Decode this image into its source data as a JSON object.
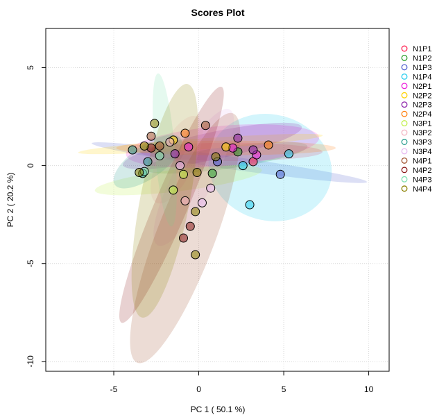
{
  "chart_data": {
    "type": "scatter",
    "title": "Scores Plot",
    "xlabel": "PC 1 ( 50.1 %)",
    "ylabel": "PC 2 ( 20.2 %)",
    "xlim": [
      -9,
      11.2
    ],
    "ylim": [
      -10.5,
      7
    ],
    "xticks": [
      -5,
      0,
      5,
      10
    ],
    "yticks": [
      -10,
      -5,
      0,
      5
    ],
    "grid": true,
    "legend_position": "right",
    "series": [
      {
        "name": "N1P1",
        "color": "#FF1F4F",
        "points": [
          [
            3.2,
            0.2
          ]
        ],
        "ellipse": {
          "cx": 1.9,
          "cy": 0.7,
          "rx": 5.0,
          "ry": 0.5,
          "angle": 0
        }
      },
      {
        "name": "N1P2",
        "color": "#2CA02C",
        "points": [
          [
            2.3,
            0.7
          ],
          [
            0.8,
            -0.4
          ]
        ],
        "ellipse": {
          "cx": 1.6,
          "cy": 0.4,
          "rx": 4.5,
          "ry": 0.6,
          "angle": 8
        }
      },
      {
        "name": "N1P3",
        "color": "#4F5FCF",
        "points": [
          [
            4.8,
            -0.45
          ],
          [
            1.1,
            0.2
          ]
        ],
        "ellipse": {
          "cx": 1.8,
          "cy": 0.15,
          "rx": 7.6,
          "ry": 0.35,
          "angle": -8
        }
      },
      {
        "name": "N1P4",
        "color": "#22CCEE",
        "points": [
          [
            5.3,
            0.6
          ],
          [
            3.0,
            -2.0
          ],
          [
            2.6,
            0.0
          ]
        ],
        "ellipse": {
          "cx": 4.2,
          "cy": -0.1,
          "rx": 3.4,
          "ry": 2.9,
          "angle": -15
        }
      },
      {
        "name": "N2P1",
        "color": "#EE22DD",
        "points": [
          [
            3.4,
            0.55
          ],
          [
            -0.6,
            0.95
          ],
          [
            2.0,
            0.9
          ]
        ],
        "ellipse": {
          "cx": 1.4,
          "cy": 1.0,
          "rx": 5.3,
          "ry": 1.1,
          "angle": 5
        }
      },
      {
        "name": "N2P2",
        "color": "#FFD200",
        "points": [
          [
            1.6,
            0.95
          ],
          [
            -1.5,
            1.3
          ]
        ],
        "ellipse": {
          "cx": 0.1,
          "cy": 1.1,
          "rx": 6.7,
          "ry": 0.3,
          "angle": 4
        }
      },
      {
        "name": "N2P3",
        "color": "#8E24AA",
        "points": [
          [
            2.3,
            1.4
          ],
          [
            -1.4,
            0.6
          ],
          [
            3.2,
            0.8
          ]
        ],
        "ellipse": {
          "cx": 0.8,
          "cy": 1.0,
          "rx": 5.0,
          "ry": 0.75,
          "angle": 12
        }
      },
      {
        "name": "N2P4",
        "color": "#FF7F0E",
        "points": [
          [
            4.1,
            1.05
          ],
          [
            -0.8,
            1.65
          ]
        ],
        "ellipse": {
          "cx": 1.6,
          "cy": 0.9,
          "rx": 6.0,
          "ry": 0.4,
          "angle": 0
        }
      },
      {
        "name": "N3P1",
        "color": "#BFEF45",
        "points": [
          [
            -1.5,
            -1.25
          ],
          [
            -0.9,
            -0.45
          ]
        ],
        "ellipse": {
          "cx": -1.2,
          "cy": -0.75,
          "rx": 4.6,
          "ry": 0.6,
          "angle": 7
        }
      },
      {
        "name": "N3P2",
        "color": "#F4B5C2",
        "points": [
          [
            -1.7,
            1.2
          ],
          [
            -0.8,
            -1.8
          ]
        ],
        "ellipse": {
          "cx": -1.3,
          "cy": 0.3,
          "rx": 2.6,
          "ry": 1.0,
          "angle": 65
        }
      },
      {
        "name": "N3P3",
        "color": "#2A9D8F",
        "points": [
          [
            -3.9,
            0.8
          ],
          [
            -3.0,
            0.2
          ],
          [
            -3.3,
            -0.4
          ]
        ],
        "ellipse": {
          "cx": -3.0,
          "cy": 0.2,
          "rx": 2.2,
          "ry": 0.9,
          "angle": 35
        }
      },
      {
        "name": "N3P4",
        "color": "#E7B8F0",
        "points": [
          [
            0.7,
            -1.15
          ],
          [
            0.2,
            -1.9
          ],
          [
            -1.1,
            0.0
          ]
        ],
        "ellipse": {
          "cx": -0.3,
          "cy": -0.6,
          "rx": 4.2,
          "ry": 1.1,
          "angle": 62
        }
      },
      {
        "name": "N4P1",
        "color": "#A0522D",
        "points": [
          [
            -2.8,
            1.5
          ],
          [
            0.4,
            2.05
          ],
          [
            -2.3,
            1.0
          ]
        ],
        "ellipse": {
          "cx": -0.8,
          "cy": -3.7,
          "rx": 7.3,
          "ry": 1.6,
          "angle": 69
        }
      },
      {
        "name": "N4P2",
        "color": "#8B1A1A",
        "points": [
          [
            -0.9,
            -3.7
          ],
          [
            -0.5,
            -3.1
          ],
          [
            -2.8,
            0.9
          ]
        ],
        "ellipse": {
          "cx": -1.6,
          "cy": -2.0,
          "rx": 7.0,
          "ry": 0.9,
          "angle": 67
        }
      },
      {
        "name": "N4P3",
        "color": "#7FE0B0",
        "points": [
          [
            -2.3,
            0.5
          ],
          [
            -3.2,
            -0.3
          ]
        ],
        "ellipse": {
          "cx": -2.0,
          "cy": 0.8,
          "rx": 4.2,
          "ry": 0.55,
          "angle": 95
        }
      },
      {
        "name": "N4P4",
        "color": "#8B8000",
        "points": [
          [
            -2.6,
            2.15
          ],
          [
            -3.5,
            -0.35
          ],
          [
            1.0,
            0.45
          ],
          [
            -0.1,
            -0.35
          ],
          [
            -0.2,
            -2.35
          ],
          [
            -0.2,
            -4.55
          ],
          [
            -3.2,
            1.0
          ]
        ],
        "ellipse": {
          "cx": -2.0,
          "cy": -1.8,
          "rx": 6.5,
          "ry": 1.35,
          "angle": 79
        }
      }
    ]
  }
}
